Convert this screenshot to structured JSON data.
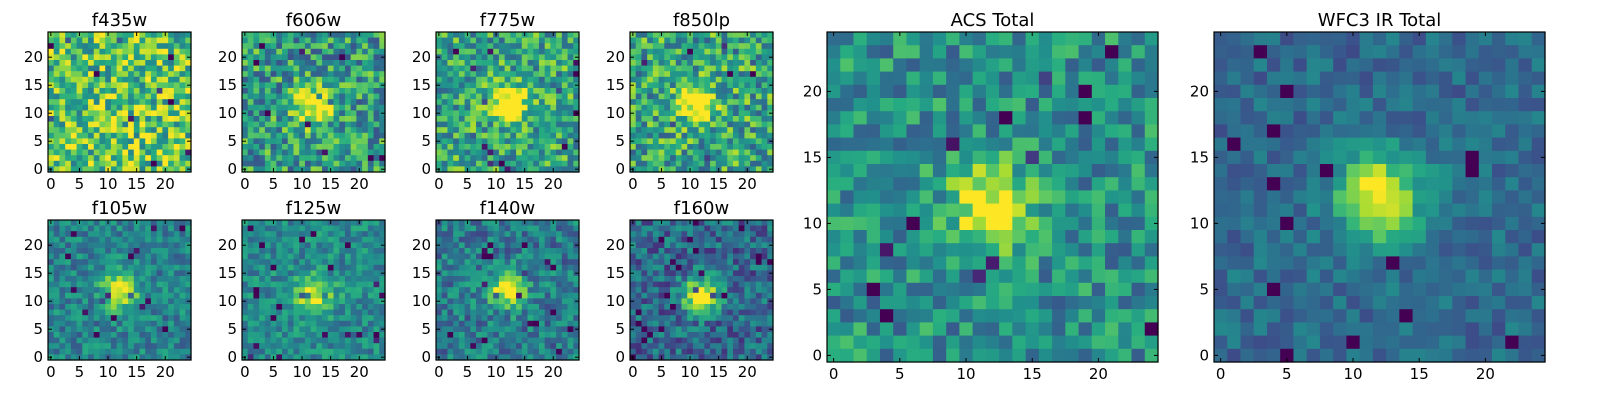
{
  "figure": {
    "panels": [
      {
        "title": "f435w"
      },
      {
        "title": "f606w"
      },
      {
        "title": "f775w"
      },
      {
        "title": "f850lp"
      },
      {
        "title": "f105w"
      },
      {
        "title": "f125w"
      },
      {
        "title": "f140w"
      },
      {
        "title": "f160w"
      },
      {
        "title": "ACS Total"
      },
      {
        "title": "WFC3 IR Total"
      }
    ],
    "small_panel_x_ticks": [
      "0",
      "5",
      "10",
      "15",
      "20"
    ],
    "small_panel_y_ticks": [
      "0",
      "5",
      "10",
      "15",
      "20"
    ],
    "large_panel_x_ticks": [
      "0",
      "5",
      "10",
      "15",
      "20"
    ],
    "large_panel_y_ticks": [
      "0",
      "5",
      "10",
      "15",
      "20"
    ],
    "grid_size": 25,
    "colormap": "viridis"
  }
}
